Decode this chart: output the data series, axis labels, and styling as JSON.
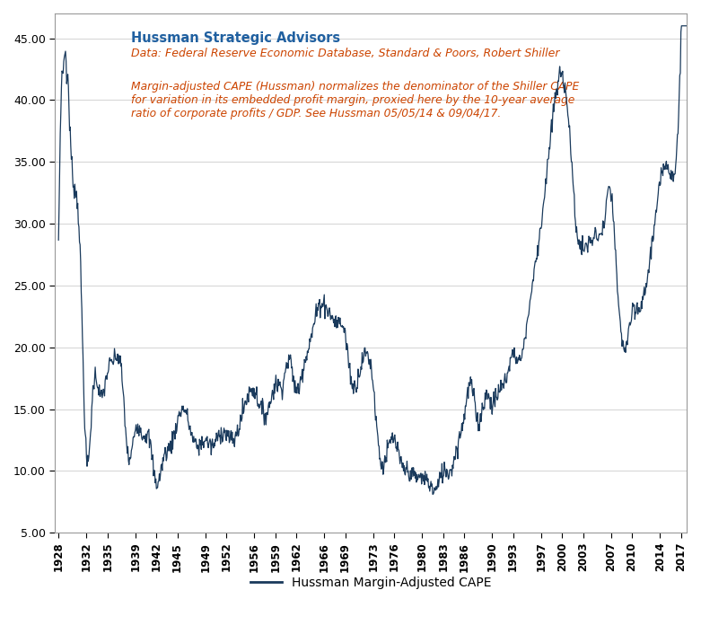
{
  "title1": "Hussman Strategic Advisors",
  "title2": "Data: Federal Reserve Economic Database, Standard & Poors, Robert Shiller",
  "annotation": "Margin-adjusted CAPE (Hussman) normalizes the denominator of the Shiller CAPE\nfor variation in its embedded profit margin, proxied here by the 10-year average\nratio of corporate profits / GDP. See Hussman 05/05/14 & 09/04/17.",
  "legend_label": "Hussman Margin-Adjusted CAPE",
  "xlabel": "Hussman Margin-Adjusted CAPE",
  "line_color": "#1a3a5c",
  "background_color": "#ffffff",
  "ylim": [
    5,
    47
  ],
  "yticks": [
    5.0,
    10.0,
    15.0,
    20.0,
    25.0,
    30.0,
    35.0,
    40.0,
    45.0
  ],
  "xtick_years": [
    1928,
    1932,
    1935,
    1939,
    1942,
    1945,
    1949,
    1952,
    1956,
    1959,
    1962,
    1966,
    1969,
    1973,
    1976,
    1980,
    1983,
    1986,
    1990,
    1993,
    1997,
    2000,
    2003,
    2007,
    2010,
    2014,
    2017
  ]
}
